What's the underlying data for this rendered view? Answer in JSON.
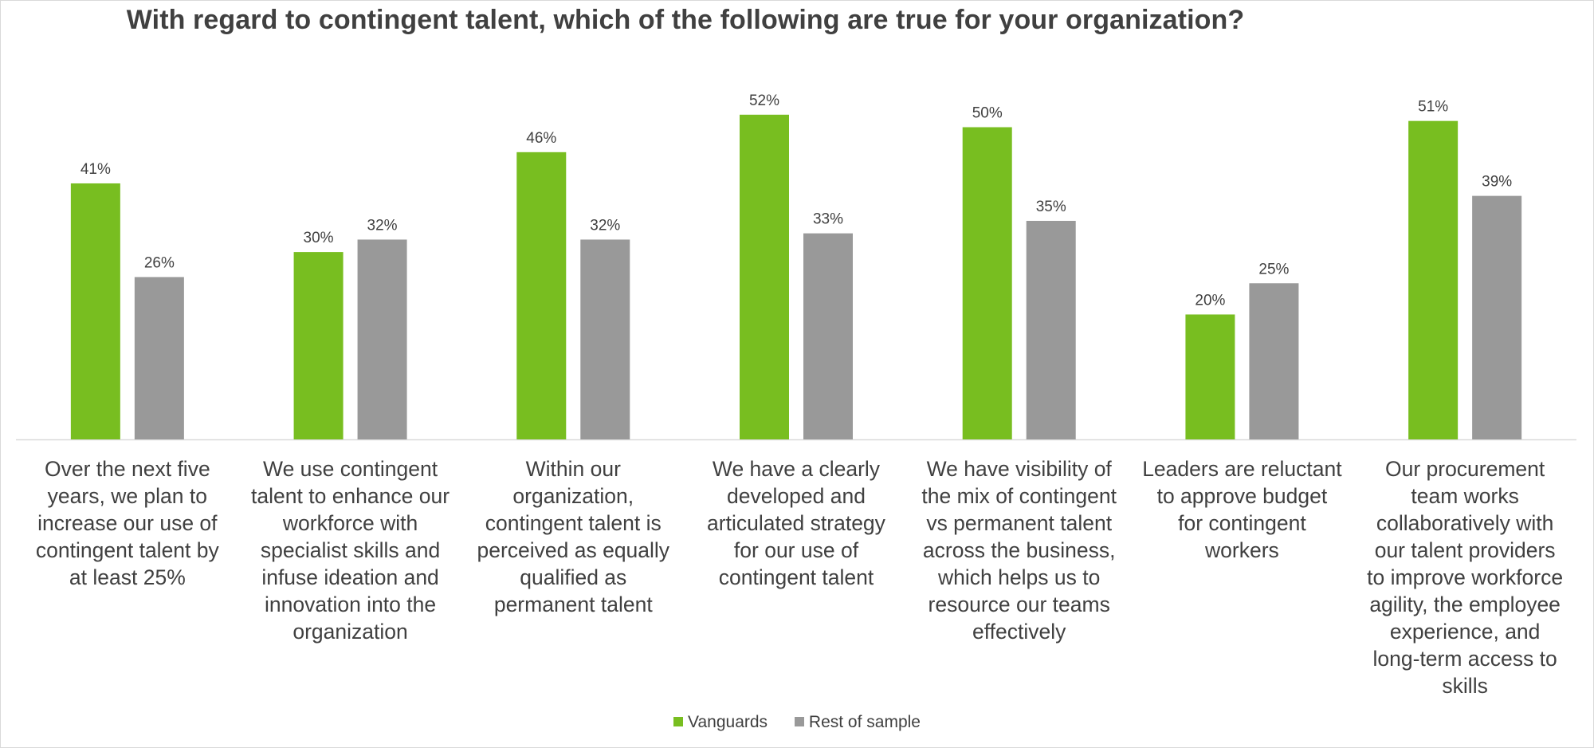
{
  "chart_data": {
    "type": "bar",
    "title": "With regard to contingent talent, which of the following are true for your organization?",
    "categories": [
      "Over the next five years, we plan to increase our use of contingent talent by at least 25%",
      "We use contingent talent to enhance our workforce with specialist skills and infuse ideation and innovation into the organization",
      "Within our organization, contingent talent is perceived as equally qualified as permanent talent",
      "We have a clearly developed and articulated strategy for our use of contingent talent",
      "We have visibility of the mix of contingent vs permanent talent across the business, which helps us to resource our teams effectively",
      "Leaders are reluctant to approve budget for contingent workers",
      "Our procurement team works collaboratively with our talent providers to improve workforce agility, the employee experience, and long-term access to skills"
    ],
    "category_lines": [
      [
        "Over the next five",
        "years, we plan to",
        "increase our use of",
        "contingent talent by",
        "at least 25%"
      ],
      [
        "We use contingent",
        "talent to enhance our",
        "workforce with",
        "specialist skills and",
        "infuse ideation and",
        "innovation into the",
        "organization"
      ],
      [
        "Within our",
        "organization,",
        "contingent talent is",
        "perceived as equally",
        "qualified as",
        "permanent talent"
      ],
      [
        "We have a clearly",
        "developed and",
        "articulated strategy",
        "for our use of",
        "contingent talent"
      ],
      [
        "We have visibility of",
        "the mix of contingent",
        "vs permanent talent",
        "across the business,",
        "which helps us to",
        "resource our teams",
        "effectively"
      ],
      [
        "Leaders are reluctant",
        "to approve budget",
        "for contingent",
        "workers"
      ],
      [
        "Our procurement",
        "team works",
        "collaboratively with",
        "our talent providers",
        "to improve workforce",
        "agility, the employee",
        "experience, and",
        "long-term access to",
        "skills"
      ]
    ],
    "series": [
      {
        "name": "Vanguards",
        "color": "#78be20",
        "values": [
          41,
          30,
          46,
          52,
          50,
          20,
          51
        ]
      },
      {
        "name": "Rest of sample",
        "color": "#999999",
        "values": [
          26,
          32,
          32,
          33,
          35,
          25,
          39
        ]
      }
    ],
    "value_suffix": "%",
    "ylim": [
      0,
      60
    ],
    "legend": "bottom",
    "grid": false
  }
}
